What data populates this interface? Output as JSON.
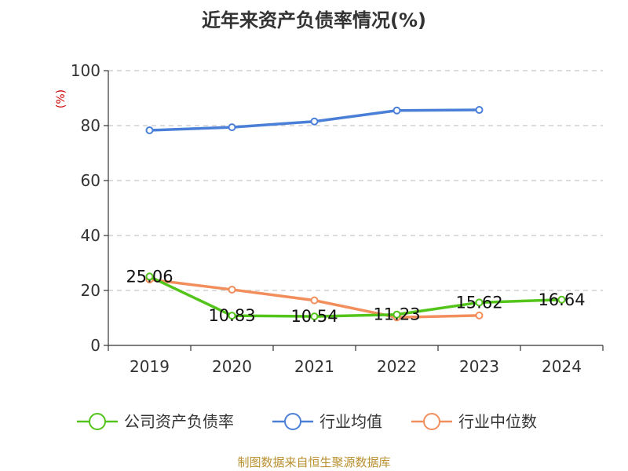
{
  "page_title": "近年来资产负债率情况(%)",
  "footer": "制图数据来自恒生聚源数据库",
  "chart_data": {
    "type": "line",
    "title": "近年来资产负债率情况(%)",
    "ylabel": "(%)",
    "xlabel": "",
    "categories": [
      "2019",
      "2020",
      "2021",
      "2022",
      "2023",
      "2024"
    ],
    "yticks": [
      "0",
      "20",
      "40",
      "60",
      "80",
      "100"
    ],
    "ylim": [
      0,
      100
    ],
    "grid": true,
    "legend_position": "bottom",
    "series": [
      {
        "name": "公司资产负债率",
        "color": "#52c41a",
        "values": [
          25.06,
          10.83,
          10.54,
          11.23,
          15.62,
          16.64
        ],
        "labels": [
          "25.06",
          "10.83",
          "10.54",
          "11.23",
          "15.62",
          "16.64"
        ]
      },
      {
        "name": "行业均值",
        "color": "#4a7fd8",
        "values": [
          78.3,
          79.4,
          81.5,
          85.5,
          85.7,
          null
        ]
      },
      {
        "name": "行业中位数",
        "color": "#f28e5c",
        "values": [
          24.0,
          20.3,
          16.4,
          10.2,
          10.9,
          null
        ]
      }
    ]
  }
}
